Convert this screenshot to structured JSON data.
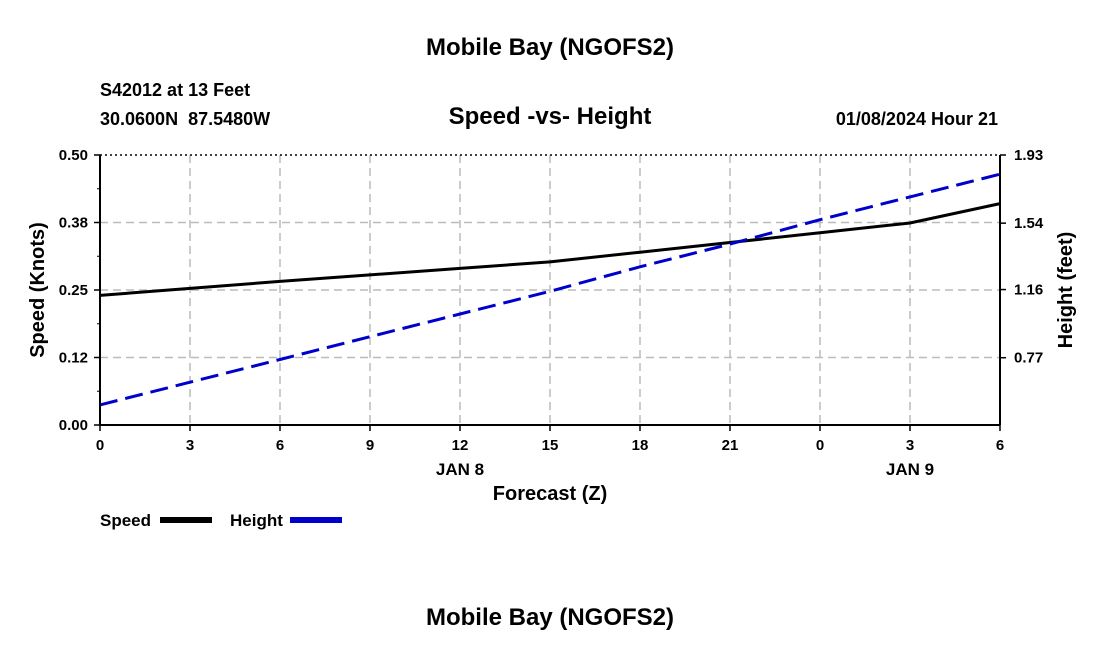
{
  "header": {
    "title": "Mobile Bay (NGOFS2)",
    "station": "S42012 at 13 Feet",
    "coords": "30.0600N  87.5480W",
    "subtitle": "Speed -vs- Height",
    "datetime": "01/08/2024 Hour 21"
  },
  "footer": {
    "title": "Mobile Bay (NGOFS2)"
  },
  "colors": {
    "speed": "#000000",
    "height": "#0000cc",
    "grid": "#bbbbbb"
  },
  "chart_data": {
    "type": "line",
    "title": "Speed -vs- Height",
    "xlabel": "Forecast (Z)",
    "ylabel": "Speed (Knots)",
    "y2label": "Height (feet)",
    "x_ticks": [
      "0",
      "3",
      "6",
      "9",
      "12",
      "15",
      "18",
      "21",
      "0",
      "3",
      "6"
    ],
    "date_labels": [
      {
        "text": "JAN 8",
        "hour_index": 12
      },
      {
        "text": "JAN 9",
        "hour_index": 27
      }
    ],
    "xlim": [
      0,
      30
    ],
    "ylim": [
      0,
      0.5
    ],
    "y_ticks": [
      "0.00",
      "0.12",
      "0.25",
      "0.38",
      "0.50"
    ],
    "y_tick_values": [
      0,
      0.125,
      0.25,
      0.375,
      0.5
    ],
    "y2lim": [
      0.385,
      1.93
    ],
    "y2_ticks": [
      "0.77",
      "1.16",
      "1.54",
      "1.93"
    ],
    "y2_tick_values": [
      0.77,
      1.16,
      1.54,
      1.93
    ],
    "grid": true,
    "legend_placement": "bottom-left",
    "series": [
      {
        "name": "Speed",
        "axis": "left",
        "x": [
          0,
          3,
          6,
          9,
          12,
          15,
          18,
          21,
          24,
          27,
          30
        ],
        "values": [
          0.24,
          0.253,
          0.266,
          0.278,
          0.29,
          0.302,
          0.32,
          0.338,
          0.356,
          0.374,
          0.41
        ]
      },
      {
        "name": "Height",
        "axis": "right",
        "x": [
          0,
          3,
          6,
          9,
          12,
          15,
          18,
          21,
          24,
          27,
          30
        ],
        "values": [
          0.5,
          0.63,
          0.76,
          0.89,
          1.02,
          1.15,
          1.29,
          1.42,
          1.56,
          1.69,
          1.82
        ]
      }
    ]
  }
}
